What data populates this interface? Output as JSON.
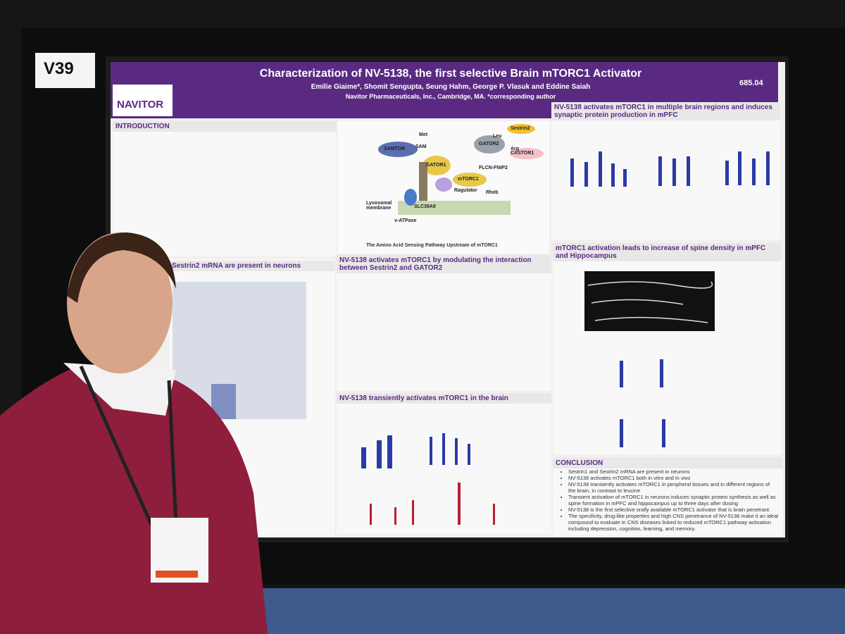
{
  "board_label": "V39",
  "poster": {
    "logo": "NAVITOR",
    "title": "Characterization of NV-5138, the first selective Brain mTORC1 Activator",
    "authors": "Emilie Giaime*, Shomit Sengupta, Seung Hahm, George P. Vlasuk and Eddine Saiah",
    "affiliation": "Navitor Pharmaceuticals, Inc., Cambridge, MA. *corresponding author",
    "number": "685.04",
    "sections": [
      {
        "heading": "INTRODUCTION"
      },
      {
        "heading": "NV-5138 activates mTORC1 in multiple brain regions and induces synaptic protein production in mPFC"
      },
      {
        "heading": "Sestrin2 mRNA are present in neurons"
      },
      {
        "heading": "NV-5138 activates mTORC1 by modulating the interaction between Sestrin2 and GATOR2"
      },
      {
        "heading": "mTORC1 activation leads to increase of spine density in mPFC and Hippocampus"
      },
      {
        "heading": "NV-5138 transiently activates mTORC1 in the brain"
      },
      {
        "heading": "CONCLUSION"
      }
    ],
    "conclusion": [
      "Sestrin1 and Sestrin2 mRNA are present in neurons",
      "NV-5138 activates mTORC1 both in vitro and in vivo",
      "NV-5138 transiently activates mTORC1 in peripheral tissues and in different regions of the brain, in contrast to leucine",
      "Transient activation of mTORC1 in neurons induces synaptic protein synthesis as well as spine formation in mPFC and hippocampus up to three days after dosing",
      "NV-5138 is the first selective orally available mTORC1 activator that is brain penetrant.",
      "The specificity, drug-like properties and high CNS penetrance of NV-5138 make it an ideal compound to evaluate in CNS diseases linked to reduced mTORC1 pathway activation including depression, cognition, learning, and memory."
    ],
    "diagram": {
      "labels": [
        "SAMTOR",
        "SAM",
        "Met",
        "GATOR1",
        "GATOR2",
        "Sestrin2",
        "Leu",
        "Arg",
        "CASTOR1",
        "FLCN-FNIP2",
        "mTORC1",
        "Rheb",
        "Ragulator",
        "SLC38A9",
        "v-ATPase",
        "Lysosomal membrane"
      ],
      "caption": "The Amino Acid Sensing Pathway Upstream of mTORC1"
    }
  }
}
